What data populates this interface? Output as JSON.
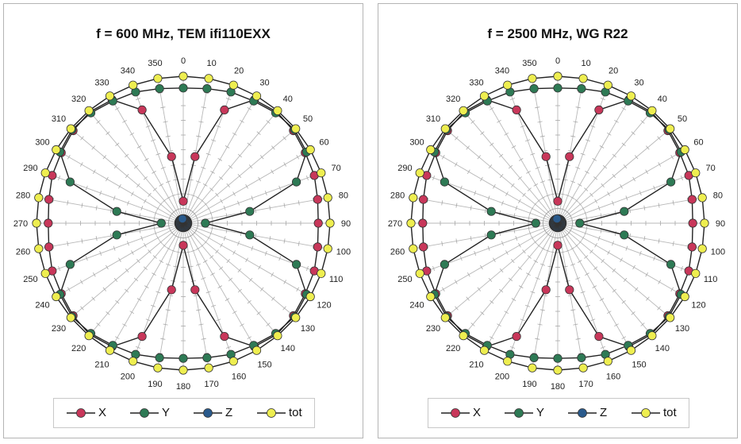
{
  "chart_data": [
    {
      "type": "polar-line",
      "title": "f = 600 MHz, TEM ifi110EXX",
      "angle_labels": [
        "0",
        "10",
        "20",
        "30",
        "40",
        "50",
        "60",
        "70",
        "80",
        "90",
        "100",
        "110",
        "120",
        "130",
        "140",
        "150",
        "160",
        "170",
        "180",
        "190",
        "200",
        "210",
        "220",
        "230",
        "240",
        "250",
        "260",
        "270",
        "280",
        "290",
        "300",
        "310",
        "320",
        "330",
        "340",
        "350"
      ],
      "series": [
        {
          "name": "X",
          "color": "#c8375a",
          "values": [
            0.15,
            0.46,
            0.82,
            0.97,
            0.99,
            0.98,
            0.96,
            0.95,
            0.93,
            0.92,
            0.93,
            0.95,
            0.96,
            0.98,
            0.99,
            0.97,
            0.82,
            0.46,
            0.15,
            0.46,
            0.82,
            0.97,
            0.99,
            0.98,
            0.96,
            0.95,
            0.93,
            0.92,
            0.93,
            0.95,
            0.96,
            0.98,
            0.99,
            0.97,
            0.82,
            0.46
          ]
        },
        {
          "name": "Y",
          "color": "#2e7a55",
          "values": [
            0.92,
            0.93,
            0.95,
            0.96,
            0.98,
            0.99,
            0.97,
            0.82,
            0.46,
            0.15,
            0.46,
            0.82,
            0.97,
            0.99,
            0.98,
            0.96,
            0.95,
            0.93,
            0.92,
            0.93,
            0.95,
            0.96,
            0.98,
            0.99,
            0.97,
            0.82,
            0.46,
            0.15,
            0.46,
            0.82,
            0.97,
            0.99,
            0.98,
            0.96,
            0.95,
            0.93
          ]
        },
        {
          "name": "Z",
          "color": "#2a5a8c",
          "values": [
            0.03,
            0.03,
            0.03,
            0.03,
            0.03,
            0.03,
            0.03,
            0.03,
            0.03,
            0.03,
            0.03,
            0.03,
            0.03,
            0.03,
            0.03,
            0.03,
            0.03,
            0.03,
            0.03,
            0.03,
            0.03,
            0.03,
            0.03,
            0.03,
            0.03,
            0.03,
            0.03,
            0.03,
            0.03,
            0.03,
            0.03,
            0.03,
            0.03,
            0.03,
            0.03,
            0.03
          ]
        },
        {
          "name": "tot",
          "color": "#eeee50",
          "values": [
            1.0,
            1.0,
            1.0,
            1.0,
            1.0,
            1.0,
            1.0,
            1.0,
            1.0,
            1.0,
            1.0,
            1.0,
            1.0,
            1.0,
            1.0,
            1.0,
            1.0,
            1.0,
            1.0,
            1.0,
            1.0,
            1.0,
            1.0,
            1.0,
            1.0,
            1.0,
            1.0,
            1.0,
            1.0,
            1.0,
            1.0,
            1.0,
            1.0,
            1.0,
            1.0,
            1.0
          ]
        }
      ],
      "legend_position": "bottom",
      "grid": true
    },
    {
      "type": "polar-line",
      "title": "f = 2500 MHz, WG R22",
      "angle_labels": [
        "0",
        "10",
        "20",
        "30",
        "40",
        "50",
        "60",
        "70",
        "80",
        "90",
        "100",
        "110",
        "120",
        "130",
        "140",
        "150",
        "160",
        "170",
        "180",
        "190",
        "200",
        "210",
        "220",
        "230",
        "240",
        "250",
        "260",
        "270",
        "280",
        "290",
        "300",
        "310",
        "320",
        "330",
        "340",
        "350"
      ],
      "series": [
        {
          "name": "X",
          "color": "#c8375a",
          "values": [
            0.15,
            0.46,
            0.82,
            0.97,
            0.99,
            0.98,
            0.96,
            0.95,
            0.93,
            0.92,
            0.93,
            0.95,
            0.96,
            0.98,
            0.99,
            0.97,
            0.82,
            0.46,
            0.15,
            0.46,
            0.82,
            0.97,
            0.99,
            0.98,
            0.96,
            0.95,
            0.93,
            0.92,
            0.93,
            0.95,
            0.96,
            0.98,
            0.99,
            0.97,
            0.82,
            0.46
          ]
        },
        {
          "name": "Y",
          "color": "#2e7a55",
          "values": [
            0.92,
            0.93,
            0.95,
            0.96,
            0.98,
            0.99,
            0.97,
            0.82,
            0.46,
            0.15,
            0.46,
            0.82,
            0.97,
            0.99,
            0.98,
            0.96,
            0.95,
            0.93,
            0.92,
            0.93,
            0.95,
            0.96,
            0.98,
            0.99,
            0.97,
            0.82,
            0.46,
            0.15,
            0.46,
            0.82,
            0.97,
            0.99,
            0.98,
            0.96,
            0.95,
            0.93
          ]
        },
        {
          "name": "Z",
          "color": "#2a5a8c",
          "values": [
            0.03,
            0.03,
            0.03,
            0.03,
            0.03,
            0.03,
            0.03,
            0.03,
            0.03,
            0.03,
            0.03,
            0.03,
            0.03,
            0.03,
            0.03,
            0.03,
            0.03,
            0.03,
            0.03,
            0.03,
            0.03,
            0.03,
            0.03,
            0.03,
            0.03,
            0.03,
            0.03,
            0.03,
            0.03,
            0.03,
            0.03,
            0.03,
            0.03,
            0.03,
            0.03,
            0.03
          ]
        },
        {
          "name": "tot",
          "color": "#eeee50",
          "values": [
            1.0,
            1.0,
            1.0,
            1.0,
            1.0,
            1.0,
            1.0,
            1.0,
            1.0,
            1.0,
            1.0,
            1.0,
            1.0,
            1.0,
            1.0,
            1.0,
            1.0,
            1.0,
            1.0,
            1.0,
            1.0,
            1.0,
            1.0,
            1.0,
            1.0,
            1.0,
            1.0,
            1.0,
            1.0,
            1.0,
            1.0,
            1.0,
            1.0,
            1.0,
            1.0,
            1.0
          ]
        }
      ],
      "legend_position": "bottom",
      "grid": true
    }
  ]
}
